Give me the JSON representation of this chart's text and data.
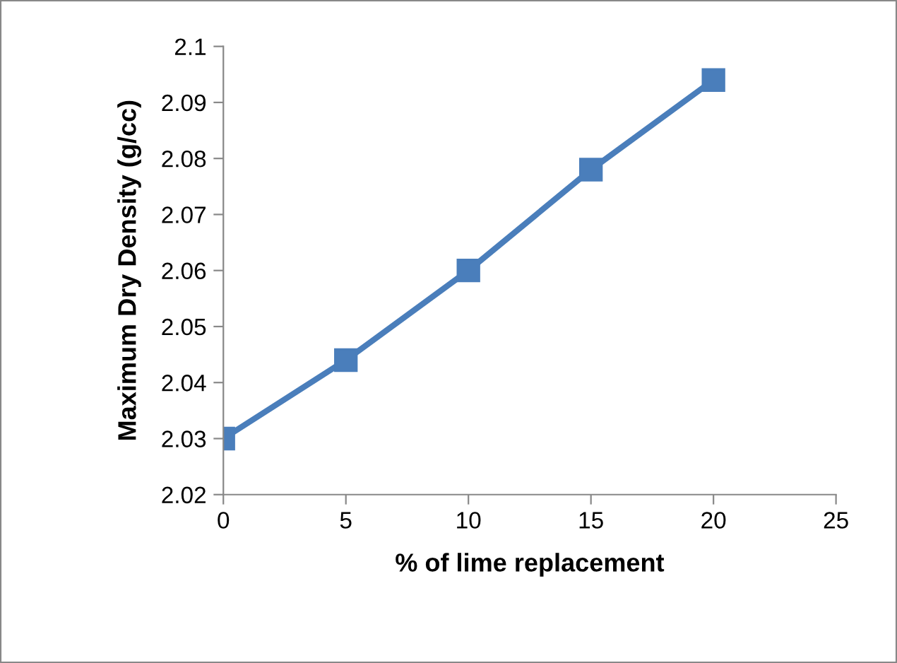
{
  "chart_data": {
    "type": "line",
    "xlabel": "% of lime replacement",
    "ylabel": "Maximum Dry Density (g/cc)",
    "x": [
      0,
      5,
      10,
      15,
      20
    ],
    "series": [
      {
        "color": "#4a7ebb",
        "values": [
          2.03,
          2.044,
          2.06,
          2.078,
          2.094
        ]
      }
    ],
    "xlim": [
      0,
      25
    ],
    "xticks": [
      0,
      5,
      10,
      15,
      20,
      25
    ],
    "ylim": [
      2.02,
      2.1
    ],
    "yticks": [
      2.02,
      2.03,
      2.04,
      2.05,
      2.06,
      2.07,
      2.08,
      2.09,
      2.1
    ],
    "marker": "square",
    "line_style": "solid",
    "grid": false
  }
}
